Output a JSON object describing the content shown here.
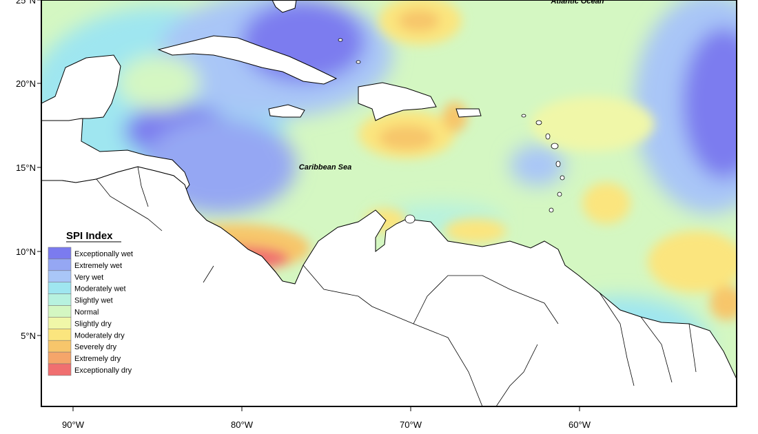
{
  "map": {
    "axes": {
      "lat_ticks": [
        "25°N",
        "20°N",
        "15°N",
        "10°N",
        "5°N"
      ],
      "lon_ticks": [
        "90°W",
        "80°W",
        "70°W",
        "60°W"
      ]
    },
    "labels": {
      "atlantic": "Atlantic Ocean",
      "caribbean": "Caribbean Sea"
    },
    "legend": {
      "title": "SPI Index",
      "items": [
        {
          "label": "Exceptionally wet",
          "color": "#7b7bef"
        },
        {
          "label": "Extremely wet",
          "color": "#95a7f3"
        },
        {
          "label": "Very wet",
          "color": "#a9c6f7"
        },
        {
          "label": "Moderately wet",
          "color": "#9fe6f0"
        },
        {
          "label": "Slightly wet",
          "color": "#b7f2df"
        },
        {
          "label": "Normal",
          "color": "#d4f7c2"
        },
        {
          "label": "Slightly dry",
          "color": "#f0f7a8"
        },
        {
          "label": "Moderately dry",
          "color": "#fbe57e"
        },
        {
          "label": "Severely dry",
          "color": "#f7c66b"
        },
        {
          "label": "Extremely dry",
          "color": "#f5a56a"
        },
        {
          "label": "Exceptionally dry",
          "color": "#f06f70"
        }
      ]
    }
  }
}
